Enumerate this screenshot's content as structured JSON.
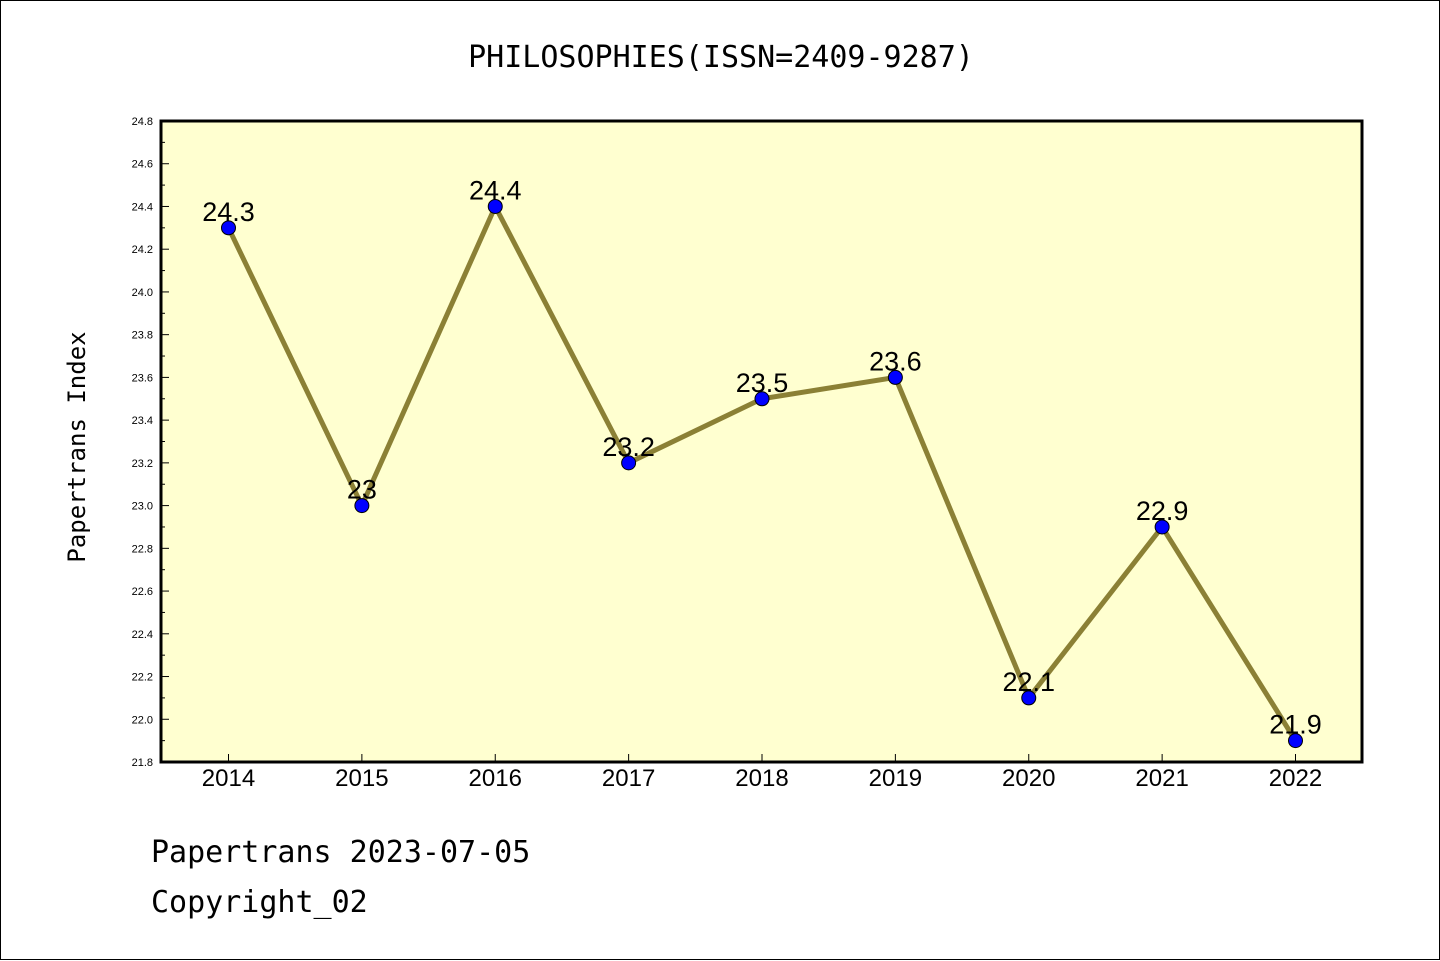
{
  "footer": {
    "date_text": "Papertrans 2023-07-05",
    "copyright_text": "Copyright_02"
  },
  "chart_data": {
    "type": "line",
    "title": "PHILOSOPHIES(ISSN=2409-9287)",
    "xlabel": "",
    "ylabel": "Papertrans Index",
    "categories": [
      "2014",
      "2015",
      "2016",
      "2017",
      "2018",
      "2019",
      "2020",
      "2021",
      "2022"
    ],
    "series": [
      {
        "values": [
          24.3,
          23.0,
          24.4,
          23.2,
          23.5,
          23.6,
          22.1,
          22.9,
          21.9
        ],
        "labels": [
          "24.3",
          "23",
          "24.4",
          "23.2",
          "23.5",
          "23.6",
          "22.1",
          "22.9",
          "21.9"
        ]
      }
    ],
    "ylim": [
      21.8,
      24.8
    ],
    "yticks": [
      "21.8",
      "22.0",
      "22.2",
      "22.4",
      "22.6",
      "22.8",
      "23.0",
      "23.2",
      "23.4",
      "23.6",
      "23.8",
      "24.0",
      "24.2",
      "24.4",
      "24.6",
      "24.8"
    ],
    "grid": false,
    "colors": {
      "plot_background": "#ffffd0",
      "line": "#8b8035",
      "marker": "#0000ff"
    }
  }
}
